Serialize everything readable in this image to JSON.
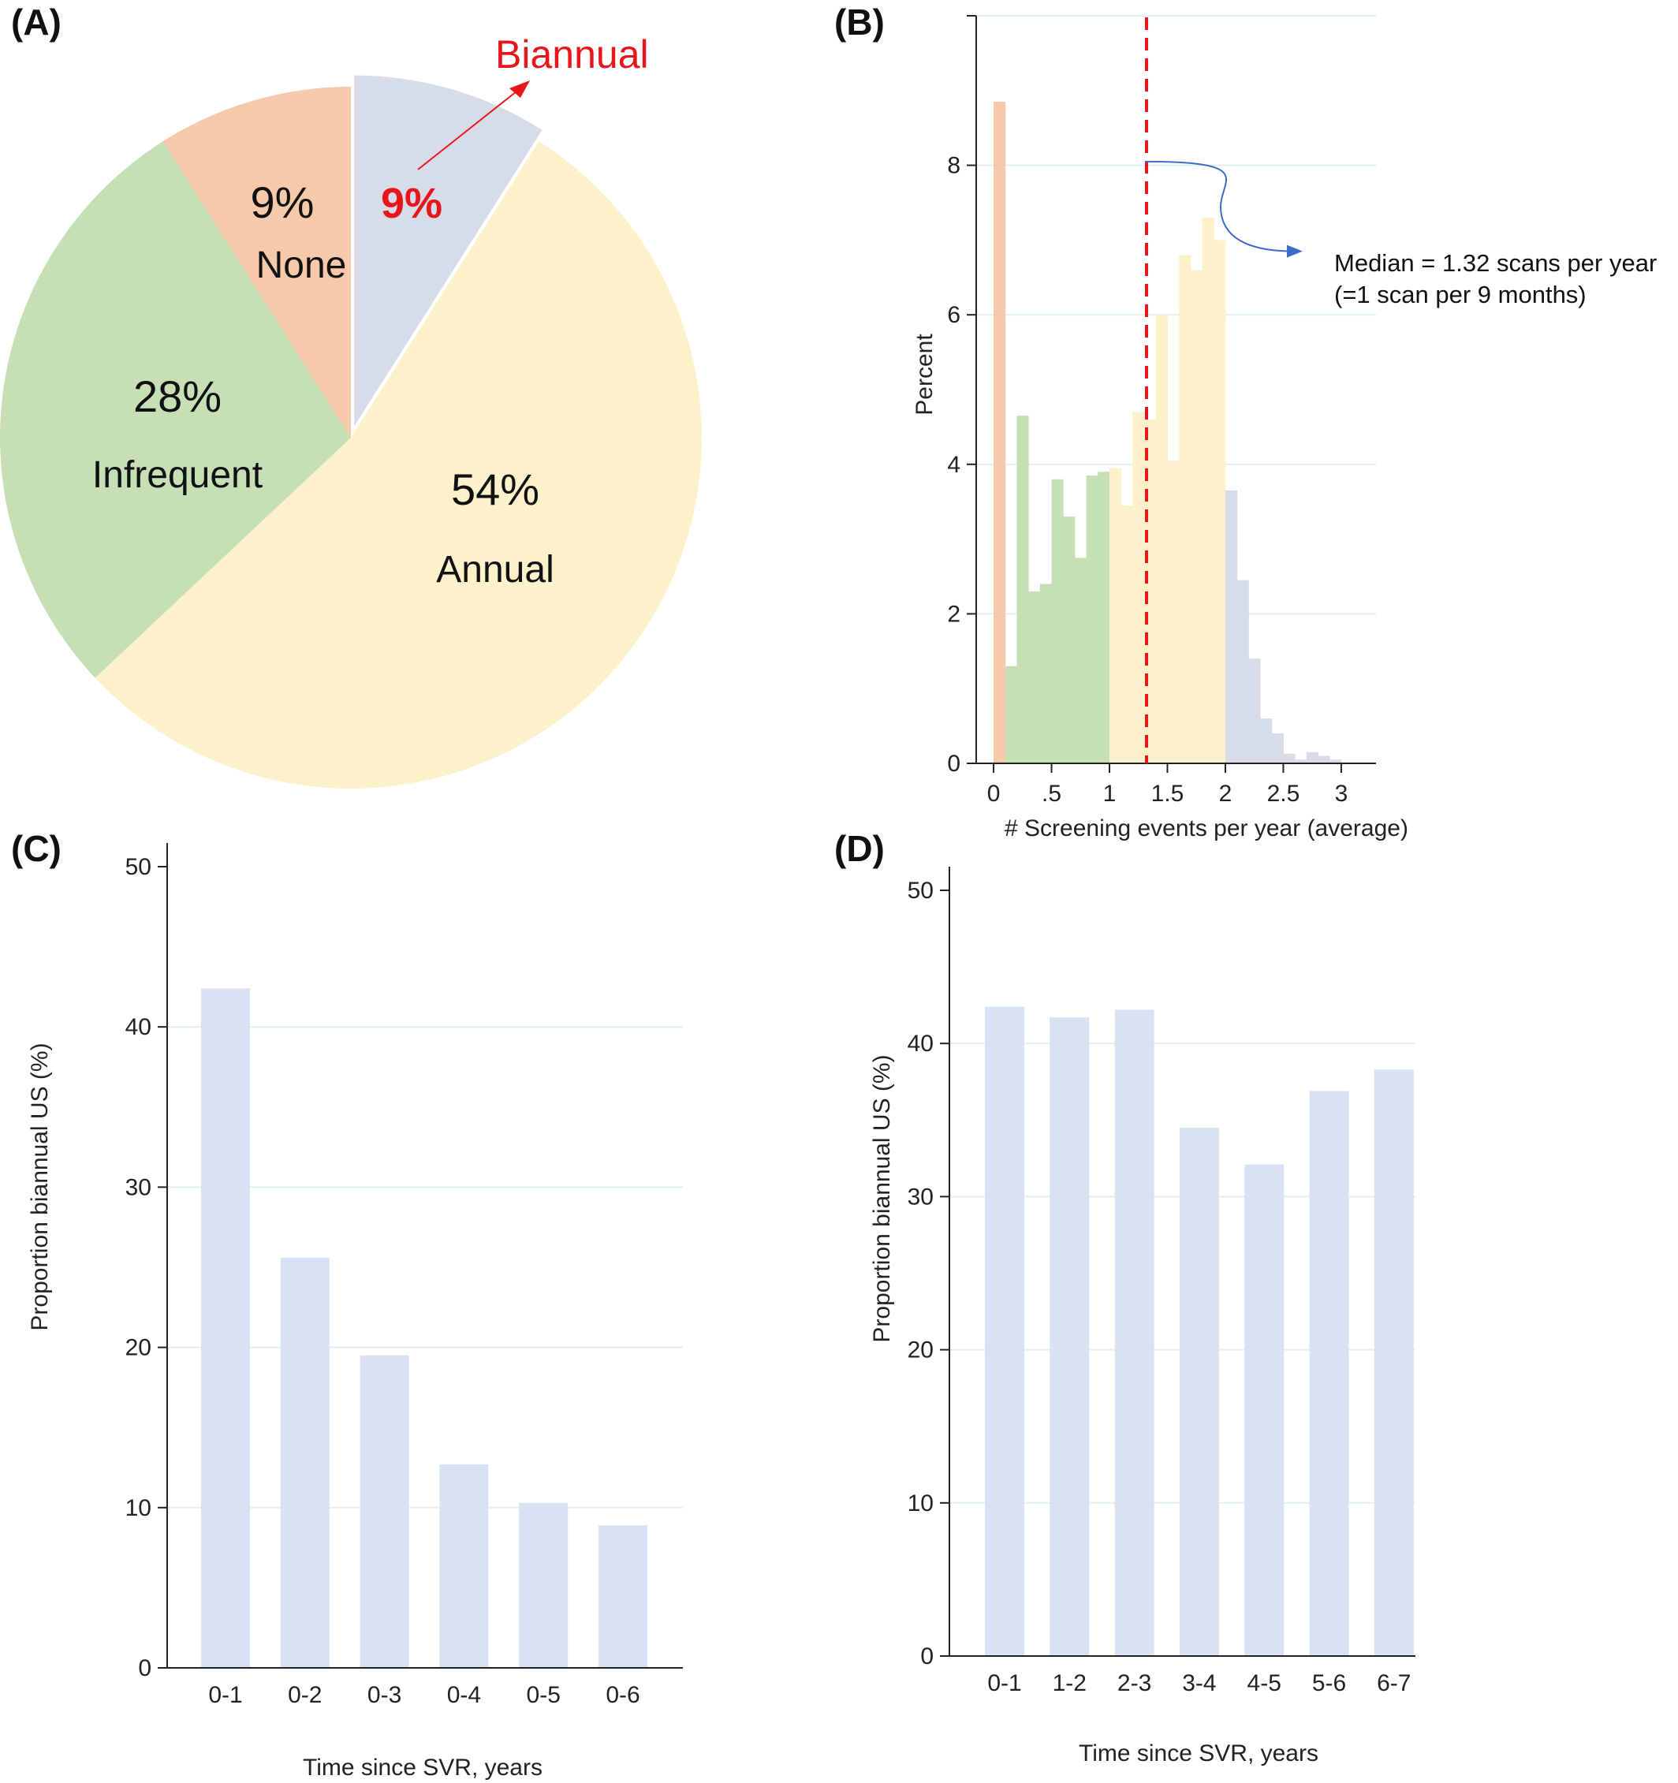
{
  "chart_data": [
    {
      "panel": "(A)",
      "type": "pie",
      "slices": [
        {
          "label": "Biannual",
          "pct_text": "9%",
          "value": 9,
          "color": "#d6dce8",
          "exploded": true,
          "highlight_color": "#e8161b"
        },
        {
          "label": "Annual",
          "pct_text": "54%",
          "value": 54,
          "color": "#fdf1cc"
        },
        {
          "label": "Infrequent",
          "pct_text": "28%",
          "value": 28,
          "color": "#c6dfb5"
        },
        {
          "label": "None",
          "pct_text": "9%",
          "value": 9,
          "color": "#f5c9a9"
        }
      ]
    },
    {
      "panel": "(B)",
      "type": "bar",
      "subtype": "histogram",
      "bin_width": 0.1,
      "xlabel": "# Screening events per year (average)",
      "ylabel": "Percent",
      "xlim": [
        -0.15,
        3.3
      ],
      "ylim": [
        0,
        10
      ],
      "xticks": [
        {
          "v": 0,
          "label": "0"
        },
        {
          "v": 0.5,
          "label": ".5"
        },
        {
          "v": 1,
          "label": "1"
        },
        {
          "v": 1.5,
          "label": "1.5"
        },
        {
          "v": 2,
          "label": "2"
        },
        {
          "v": 2.5,
          "label": "2.5"
        },
        {
          "v": 3,
          "label": "3"
        }
      ],
      "yticks": [
        0,
        2,
        4,
        6,
        8
      ],
      "grid": "horizontal",
      "bins": [
        {
          "x": 0.0,
          "y": 8.85,
          "group": "None"
        },
        {
          "x": 0.1,
          "y": 1.3,
          "group": "Infrequent"
        },
        {
          "x": 0.2,
          "y": 4.65,
          "group": "Infrequent"
        },
        {
          "x": 0.3,
          "y": 2.3,
          "group": "Infrequent"
        },
        {
          "x": 0.4,
          "y": 2.4,
          "group": "Infrequent"
        },
        {
          "x": 0.5,
          "y": 3.8,
          "group": "Infrequent"
        },
        {
          "x": 0.6,
          "y": 3.3,
          "group": "Infrequent"
        },
        {
          "x": 0.7,
          "y": 2.75,
          "group": "Infrequent"
        },
        {
          "x": 0.8,
          "y": 3.85,
          "group": "Infrequent"
        },
        {
          "x": 0.9,
          "y": 3.9,
          "group": "Infrequent"
        },
        {
          "x": 1.0,
          "y": 3.95,
          "group": "Annual"
        },
        {
          "x": 1.1,
          "y": 3.45,
          "group": "Annual"
        },
        {
          "x": 1.2,
          "y": 4.7,
          "group": "Annual"
        },
        {
          "x": 1.3,
          "y": 4.6,
          "group": "Annual"
        },
        {
          "x": 1.4,
          "y": 6.0,
          "group": "Annual"
        },
        {
          "x": 1.5,
          "y": 4.05,
          "group": "Annual"
        },
        {
          "x": 1.6,
          "y": 6.8,
          "group": "Annual"
        },
        {
          "x": 1.7,
          "y": 6.6,
          "group": "Annual"
        },
        {
          "x": 1.8,
          "y": 7.3,
          "group": "Annual"
        },
        {
          "x": 1.9,
          "y": 7.0,
          "group": "Annual"
        },
        {
          "x": 2.0,
          "y": 3.65,
          "group": "Biannual"
        },
        {
          "x": 2.1,
          "y": 2.45,
          "group": "Biannual"
        },
        {
          "x": 2.2,
          "y": 1.4,
          "group": "Biannual"
        },
        {
          "x": 2.3,
          "y": 0.6,
          "group": "Biannual"
        },
        {
          "x": 2.4,
          "y": 0.4,
          "group": "Biannual"
        },
        {
          "x": 2.5,
          "y": 0.13,
          "group": "Biannual"
        },
        {
          "x": 2.6,
          "y": 0.05,
          "group": "Biannual"
        },
        {
          "x": 2.7,
          "y": 0.15,
          "group": "Biannual"
        },
        {
          "x": 2.8,
          "y": 0.1,
          "group": "Biannual"
        },
        {
          "x": 2.9,
          "y": 0.05,
          "group": "Biannual"
        }
      ],
      "group_colors": {
        "None": "#f5c9a9",
        "Infrequent": "#c6dfb5",
        "Annual": "#fdf1cc",
        "Biannual": "#d6dce8"
      },
      "median_line": {
        "x": 1.32,
        "color": "#e8161b",
        "style": "dashed"
      },
      "annotation": {
        "line1": "Median = 1.32 scans per year",
        "line2": "(=1 scan per 9 months)",
        "arrow_color": "#3a6cc8"
      }
    },
    {
      "panel": "(C)",
      "type": "bar",
      "categories": [
        "0-1",
        "0-2",
        "0-3",
        "0-4",
        "0-5",
        "0-6"
      ],
      "values": [
        42.4,
        25.6,
        19.5,
        12.7,
        10.3,
        8.9
      ],
      "xlabel": "Time since SVR, years",
      "ylabel": "Proportion biannual US (%)",
      "ylim": [
        0,
        50
      ],
      "yticks": [
        0,
        10,
        20,
        30,
        40,
        50
      ],
      "grid": "horizontal",
      "bar_color": "#d9e2f3"
    },
    {
      "panel": "(D)",
      "type": "bar",
      "categories": [
        "0-1",
        "1-2",
        "2-3",
        "3-4",
        "4-5",
        "5-6",
        "6-7"
      ],
      "values": [
        42.4,
        41.7,
        42.2,
        34.5,
        32.1,
        36.9,
        38.3
      ],
      "xlabel": "Time since SVR, years",
      "ylabel": "Proportion biannual US (%)",
      "ylim": [
        0,
        50
      ],
      "yticks": [
        0,
        10,
        20,
        30,
        40,
        50
      ],
      "grid": "horizontal",
      "bar_color": "#d9e2f3"
    }
  ]
}
